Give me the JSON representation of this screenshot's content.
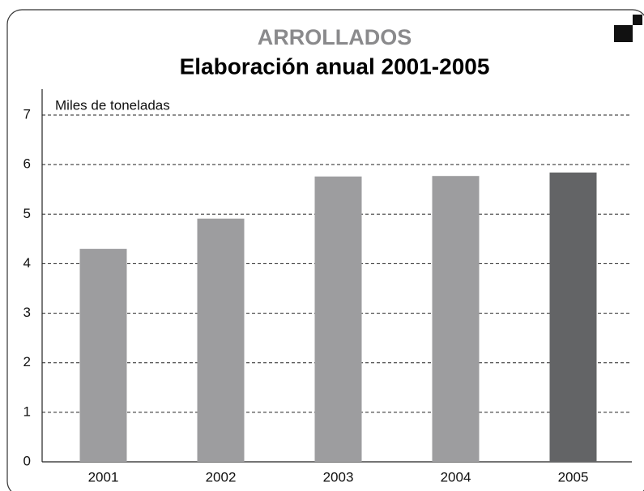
{
  "chart_data": {
    "type": "bar",
    "title": "ARROLLADOS",
    "subtitle": "Elaboración anual 2001-2005",
    "y_label": "Miles de toneladas",
    "categories": [
      "2001",
      "2002",
      "2003",
      "2004",
      "2005"
    ],
    "values": [
      4.3,
      4.91,
      5.76,
      5.77,
      5.84
    ],
    "colors": [
      "#9d9d9f",
      "#9d9d9f",
      "#9d9d9f",
      "#9d9d9f",
      "#636466"
    ],
    "ylim": [
      0,
      7
    ],
    "yticks": [
      0,
      1,
      2,
      3,
      4,
      5,
      6,
      7
    ],
    "grid": true
  }
}
